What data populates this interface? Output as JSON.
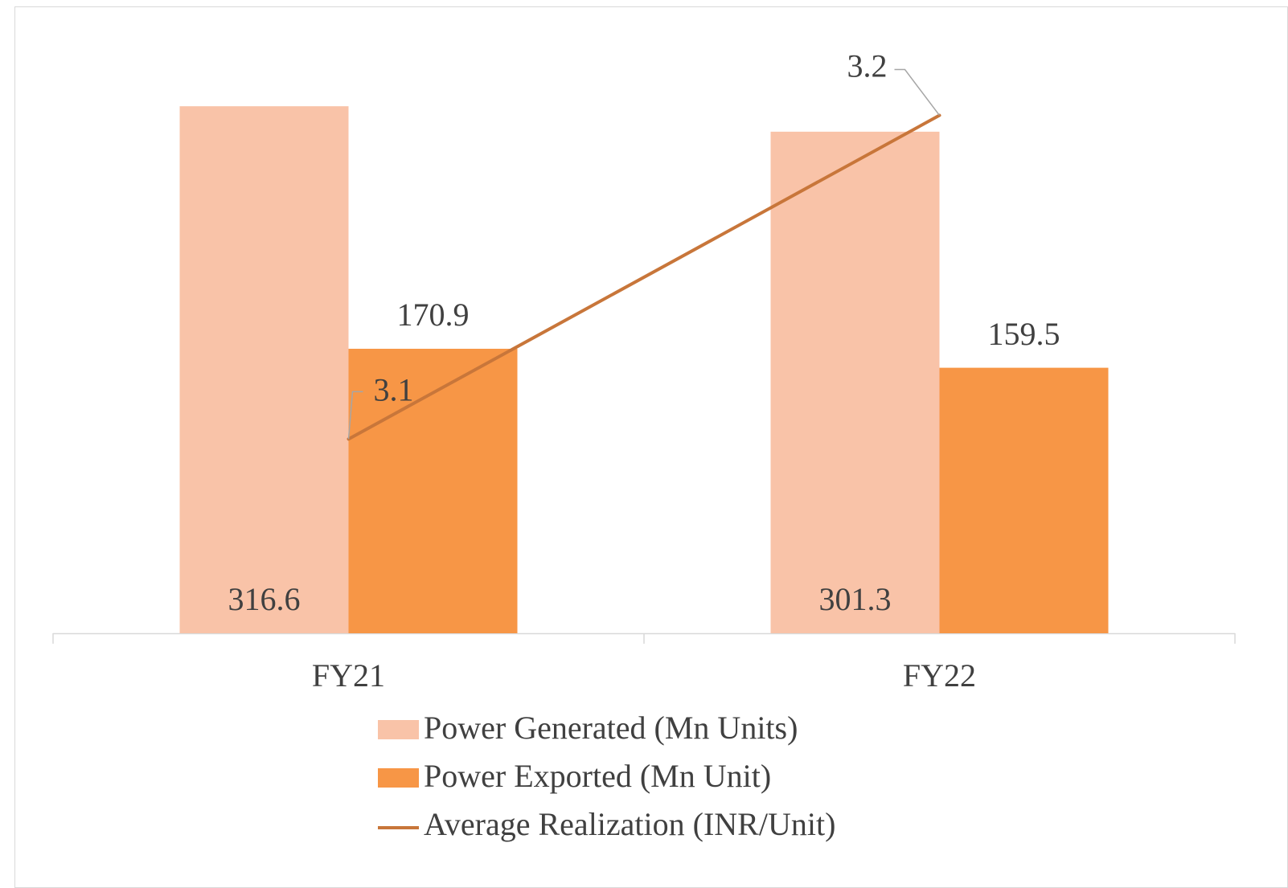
{
  "chart_data": {
    "type": "bar",
    "categories": [
      "FY21",
      "FY22"
    ],
    "series": [
      {
        "name": "Power Generated (Mn Units)",
        "type": "bar",
        "color": "#f9c3a8",
        "values": [
          316.6,
          301.3
        ]
      },
      {
        "name": "Power Exported (Mn Unit)",
        "type": "bar",
        "color": "#f79646",
        "values": [
          170.9,
          159.5
        ]
      },
      {
        "name": "Average Realization (INR/Unit)",
        "type": "line",
        "axis": "y2",
        "color": "#c8763a",
        "values": [
          3.1,
          3.2
        ]
      }
    ],
    "ylim": [
      0,
      350
    ],
    "y2lim": [
      3.04,
      3.22
    ],
    "legend": "bottom"
  }
}
